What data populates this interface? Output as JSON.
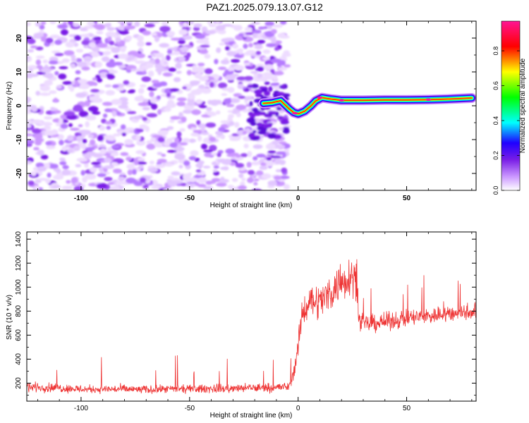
{
  "title": "PAZ1.2025.079.13.07.G12",
  "chart_data": [
    {
      "type": "heatmap",
      "title": "PAZ1.2025.079.13.07.G12",
      "xlabel": "Height of straight line (km)",
      "ylabel": "Frequency (Hz)",
      "xlim": [
        -125,
        82
      ],
      "ylim": [
        -25,
        25
      ],
      "xticks": [
        -100,
        -50,
        0,
        50
      ],
      "yticks": [
        -20,
        -10,
        0,
        10,
        20
      ],
      "colorbar": {
        "label": "Normalized spectral amplitude",
        "range": [
          0,
          0.97
        ],
        "ticks": [
          0.0,
          0.2,
          0.4,
          0.6,
          0.8
        ],
        "colormap": [
          "#ffffff",
          "#cc99ff",
          "#7a1ee6",
          "#1f00ff",
          "#00ffff",
          "#00ff00",
          "#ffff00",
          "#ff0000",
          "#ff1493"
        ]
      },
      "ridge": [
        {
          "x": -16,
          "y": 0.7
        },
        {
          "x": -12,
          "y": 0.9
        },
        {
          "x": -8,
          "y": 1.5
        },
        {
          "x": -4,
          "y": -1.0
        },
        {
          "x": -2,
          "y": -2.0
        },
        {
          "x": 0,
          "y": -2.4
        },
        {
          "x": 3,
          "y": -1.6
        },
        {
          "x": 6,
          "y": 0.0
        },
        {
          "x": 8,
          "y": 1.4
        },
        {
          "x": 11,
          "y": 2.4
        },
        {
          "x": 15,
          "y": 2.0
        },
        {
          "x": 20,
          "y": 1.6
        },
        {
          "x": 30,
          "y": 1.6
        },
        {
          "x": 40,
          "y": 1.7
        },
        {
          "x": 50,
          "y": 1.7
        },
        {
          "x": 60,
          "y": 1.8
        },
        {
          "x": 70,
          "y": 2.0
        },
        {
          "x": 80,
          "y": 2.3
        }
      ]
    },
    {
      "type": "line",
      "xlabel": "Height of straight line (km)",
      "ylabel": "SNR (10 * v/v)",
      "xlim": [
        -125,
        82
      ],
      "ylim": [
        50,
        1460
      ],
      "xticks": [
        -100,
        -50,
        0,
        50
      ],
      "yticks": [
        200,
        400,
        600,
        800,
        1000,
        1200,
        1400
      ],
      "color": "#ee3333",
      "series": [
        {
          "x": [
            -125,
            -110,
            -100,
            -90,
            -80,
            -70,
            -60,
            -50,
            -40,
            -30,
            -20,
            -10,
            -4,
            -2,
            0,
            2,
            5,
            10,
            15,
            20,
            24,
            27,
            28,
            30,
            40,
            50,
            60,
            70,
            80,
            82
          ],
          "y": [
            170,
            160,
            150,
            150,
            150,
            145,
            150,
            150,
            155,
            155,
            160,
            165,
            170,
            300,
            500,
            770,
            900,
            880,
            960,
            1040,
            1100,
            1080,
            720,
            690,
            710,
            740,
            760,
            780,
            800,
            800
          ],
          "spread": [
            60,
            55,
            55,
            50,
            55,
            50,
            50,
            50,
            55,
            55,
            55,
            60,
            60,
            90,
            150,
            180,
            200,
            220,
            230,
            240,
            260,
            240,
            120,
            110,
            110,
            110,
            110,
            110,
            110,
            110
          ]
        }
      ]
    }
  ]
}
